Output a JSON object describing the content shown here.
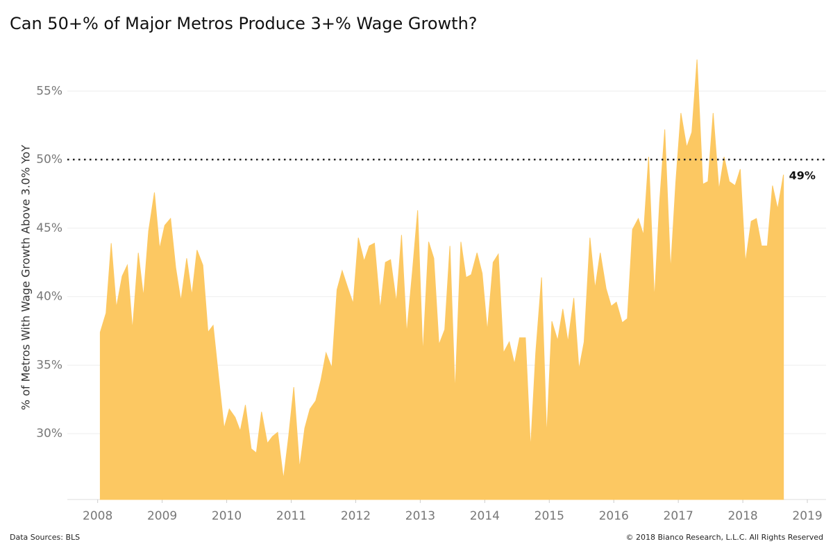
{
  "chart_data": {
    "type": "area",
    "title": "Can 50+% of Major Metros Produce 3+% Wage Growth?",
    "y_label": "% of Metros With Wage Growth Above 3.0% YoY",
    "source": "Data Sources: BLS",
    "copyright": "© 2018 Bianco Research, L.L.C. All Rights Reserved",
    "color": "#fcc862",
    "grid": true,
    "reference_line": 50,
    "annotation": "49%",
    "xlim": [
      2007.53,
      2019.29
    ],
    "xticks": [
      2008,
      2009,
      2010,
      2011,
      2012,
      2013,
      2014,
      2015,
      2016,
      2017,
      2018,
      2019
    ],
    "ylim": [
      25.2,
      58
    ],
    "yticks": [
      {
        "value": 30,
        "label": "30%"
      },
      {
        "value": 35,
        "label": "35%"
      },
      {
        "value": 40,
        "label": "40%"
      },
      {
        "value": 45,
        "label": "45%"
      },
      {
        "value": 50,
        "label": "50%"
      },
      {
        "value": 55,
        "label": "55%"
      }
    ],
    "x": [
      2008.04,
      2008.13,
      2008.21,
      2008.29,
      2008.38,
      2008.46,
      2008.54,
      2008.63,
      2008.71,
      2008.79,
      2008.88,
      2008.96,
      2009.04,
      2009.13,
      2009.21,
      2009.29,
      2009.38,
      2009.46,
      2009.54,
      2009.63,
      2009.71,
      2009.79,
      2009.88,
      2009.96,
      2010.04,
      2010.13,
      2010.21,
      2010.29,
      2010.38,
      2010.46,
      2010.54,
      2010.63,
      2010.71,
      2010.79,
      2010.88,
      2010.96,
      2011.04,
      2011.13,
      2011.21,
      2011.29,
      2011.38,
      2011.46,
      2011.54,
      2011.63,
      2011.71,
      2011.79,
      2011.88,
      2011.96,
      2012.04,
      2012.13,
      2012.21,
      2012.29,
      2012.38,
      2012.46,
      2012.54,
      2012.63,
      2012.71,
      2012.79,
      2012.88,
      2012.96,
      2013.04,
      2013.13,
      2013.21,
      2013.29,
      2013.38,
      2013.46,
      2013.54,
      2013.63,
      2013.71,
      2013.79,
      2013.88,
      2013.96,
      2014.04,
      2014.13,
      2014.21,
      2014.29,
      2014.38,
      2014.46,
      2014.54,
      2014.63,
      2014.71,
      2014.79,
      2014.88,
      2014.96,
      2015.04,
      2015.13,
      2015.21,
      2015.29,
      2015.38,
      2015.46,
      2015.54,
      2015.63,
      2015.71,
      2015.79,
      2015.88,
      2015.96,
      2016.04,
      2016.13,
      2016.21,
      2016.29,
      2016.38,
      2016.46,
      2016.54,
      2016.63,
      2016.71,
      2016.79,
      2016.88,
      2016.96,
      2017.04,
      2017.13,
      2017.21,
      2017.29,
      2017.38,
      2017.46,
      2017.54,
      2017.63,
      2017.71,
      2017.79,
      2017.88,
      2017.96,
      2018.04,
      2018.13,
      2018.21,
      2018.29,
      2018.38,
      2018.46,
      2018.54,
      2018.63
    ],
    "values": [
      37.4,
      38.8,
      43.9,
      39.2,
      41.5,
      42.3,
      37.6,
      43.2,
      40.0,
      44.8,
      47.6,
      43.5,
      45.2,
      45.7,
      42.1,
      39.7,
      42.8,
      40.1,
      43.4,
      42.3,
      37.4,
      37.9,
      33.9,
      30.4,
      31.8,
      31.2,
      30.2,
      32.1,
      28.9,
      28.6,
      31.6,
      29.3,
      29.8,
      30.1,
      26.7,
      29.8,
      33.4,
      27.5,
      30.4,
      31.8,
      32.4,
      33.9,
      35.9,
      34.8,
      40.5,
      41.9,
      40.6,
      39.5,
      44.3,
      42.6,
      43.7,
      43.9,
      39.1,
      42.5,
      42.7,
      39.6,
      44.5,
      37.3,
      41.9,
      46.3,
      35.8,
      44.0,
      42.8,
      36.5,
      37.6,
      43.7,
      33.0,
      44.0,
      41.4,
      41.6,
      43.2,
      41.7,
      37.5,
      42.5,
      43.1,
      35.9,
      36.7,
      35.1,
      37.0,
      37.0,
      28.9,
      35.9,
      41.4,
      29.8,
      38.2,
      36.8,
      39.1,
      36.7,
      39.9,
      34.7,
      36.7,
      44.3,
      40.6,
      43.2,
      40.6,
      39.3,
      39.6,
      38.1,
      38.4,
      44.9,
      45.7,
      44.5,
      50.2,
      39.8,
      46.9,
      52.2,
      41.9,
      48.3,
      53.4,
      50.9,
      52.0,
      57.3,
      48.2,
      48.4,
      53.4,
      47.8,
      50.2,
      48.4,
      48.1,
      49.3,
      42.5,
      45.5,
      45.7,
      43.7,
      43.7,
      48.1,
      46.4,
      48.9
    ]
  }
}
